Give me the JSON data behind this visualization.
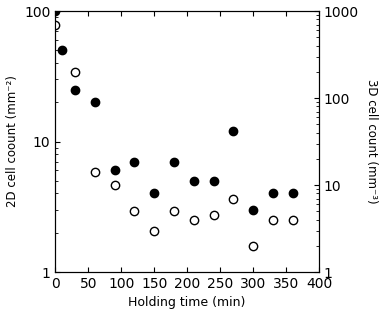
{
  "solid_x": [
    0,
    10,
    30,
    60,
    90,
    120,
    150,
    180,
    210,
    240,
    270,
    300,
    330,
    360
  ],
  "solid_y": [
    100,
    50,
    25,
    20,
    6,
    7,
    4,
    7,
    5,
    5,
    12,
    3,
    4,
    4
  ],
  "open_x": [
    0,
    30,
    60,
    90,
    120,
    150,
    180,
    210,
    240,
    270,
    300,
    330,
    360
  ],
  "open_y": [
    700,
    200,
    14,
    10,
    5,
    3,
    5,
    4,
    4.5,
    7,
    2,
    4,
    4
  ],
  "xlabel": "Holding time (min)",
  "ylabel_left": "2D cell coount (mm⁻²)",
  "ylabel_right": "3D cell count (mm⁻³)",
  "xlim": [
    0,
    400
  ],
  "ylim_left": [
    1,
    100
  ],
  "ylim_right": [
    1,
    1000
  ],
  "xticks": [
    0,
    50,
    100,
    150,
    200,
    250,
    300,
    350,
    400
  ],
  "yticks_left": [
    1,
    10,
    100
  ],
  "yticks_right": [
    1,
    10,
    100,
    1000
  ],
  "marker_size": 6,
  "bg_color": "white"
}
